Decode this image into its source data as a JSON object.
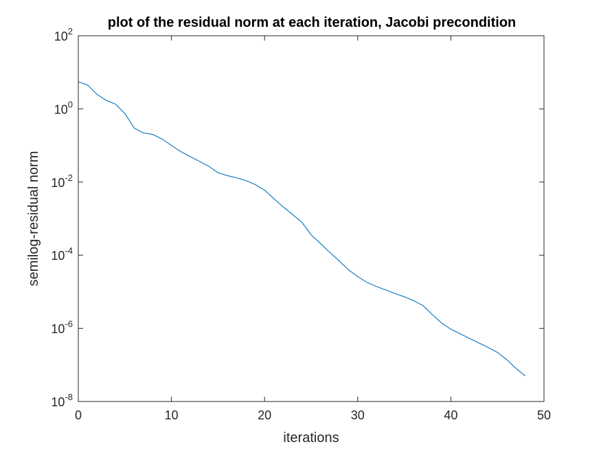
{
  "chart_data": {
    "type": "line",
    "title": "plot of the residual norm at each iteration, Jacobi precondition",
    "xlabel": "iterations",
    "ylabel": "semilog-residual norm",
    "x_scale": "linear",
    "y_scale": "log",
    "xlim": [
      0,
      50
    ],
    "ylim": [
      1e-08,
      100
    ],
    "grid": false,
    "x_ticks": [
      {
        "value": 0,
        "label": "0"
      },
      {
        "value": 10,
        "label": "10"
      },
      {
        "value": 20,
        "label": "20"
      },
      {
        "value": 30,
        "label": "30"
      },
      {
        "value": 40,
        "label": "40"
      },
      {
        "value": 50,
        "label": "50"
      }
    ],
    "y_ticks": [
      {
        "value": 1e-08,
        "base": "10",
        "exp": "-8"
      },
      {
        "value": 1e-06,
        "base": "10",
        "exp": "-6"
      },
      {
        "value": 0.0001,
        "base": "10",
        "exp": "-4"
      },
      {
        "value": 0.01,
        "base": "10",
        "exp": "-2"
      },
      {
        "value": 1,
        "base": "10",
        "exp": "0"
      },
      {
        "value": 100,
        "base": "10",
        "exp": "2"
      }
    ],
    "series": [
      {
        "color": "#0072BD",
        "x": [
          0,
          1,
          2,
          3,
          4,
          5,
          6,
          7,
          8,
          9,
          10,
          11,
          12,
          13,
          14,
          15,
          16,
          17,
          18,
          19,
          20,
          21,
          22,
          23,
          24,
          25,
          26,
          27,
          28,
          29,
          30,
          31,
          32,
          33,
          34,
          35,
          36,
          37,
          38,
          39,
          40,
          41,
          42,
          43,
          44,
          45,
          46,
          47,
          48
        ],
        "y": [
          5.5,
          4.5,
          2.5,
          1.7,
          1.35,
          0.75,
          0.3,
          0.22,
          0.2,
          0.15,
          0.1,
          0.068,
          0.05,
          0.037,
          0.027,
          0.018,
          0.015,
          0.013,
          0.011,
          0.0085,
          0.006,
          0.0035,
          0.0021,
          0.0013,
          0.0008,
          0.00036,
          0.00021,
          0.00012,
          7e-05,
          4e-05,
          2.6e-05,
          1.8e-05,
          1.4e-05,
          1.12e-05,
          9e-06,
          7.3e-06,
          5.7e-06,
          4.2e-06,
          2.4e-06,
          1.4e-06,
          9.5e-07,
          7.1e-07,
          5.3e-07,
          4e-07,
          3e-07,
          2.2e-07,
          1.4e-07,
          8e-08,
          5e-08
        ]
      }
    ]
  }
}
